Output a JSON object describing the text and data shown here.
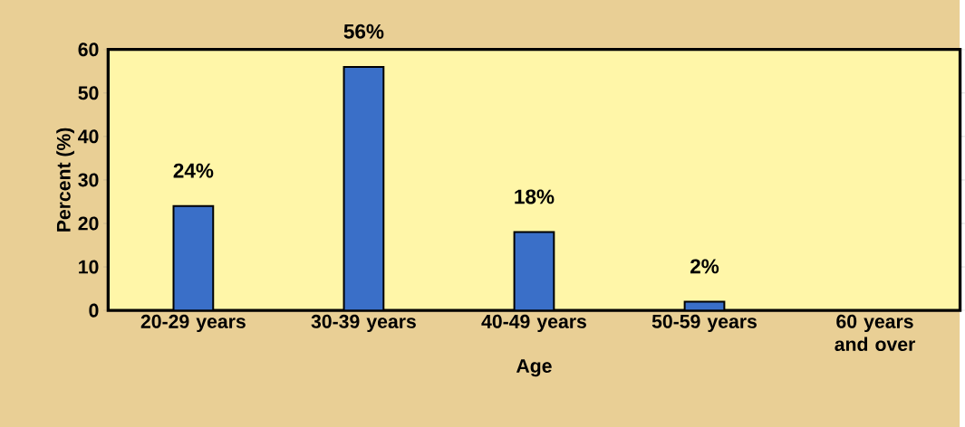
{
  "chart_data": {
    "type": "bar",
    "xlabel": "Age",
    "ylabel": "Percent (%)",
    "categories": [
      "20-29 years",
      "30-39 years",
      "40-49 years",
      "50-59 years",
      "60 years and over"
    ],
    "values": [
      24,
      56,
      18,
      2,
      null
    ],
    "value_labels": [
      "24%",
      "56%",
      "18%",
      "2%",
      null
    ],
    "color": "#3a6fc8",
    "ylim": [
      0,
      60
    ],
    "yticks": [
      0,
      10,
      20,
      30,
      40,
      50,
      60
    ],
    "grid": false
  }
}
